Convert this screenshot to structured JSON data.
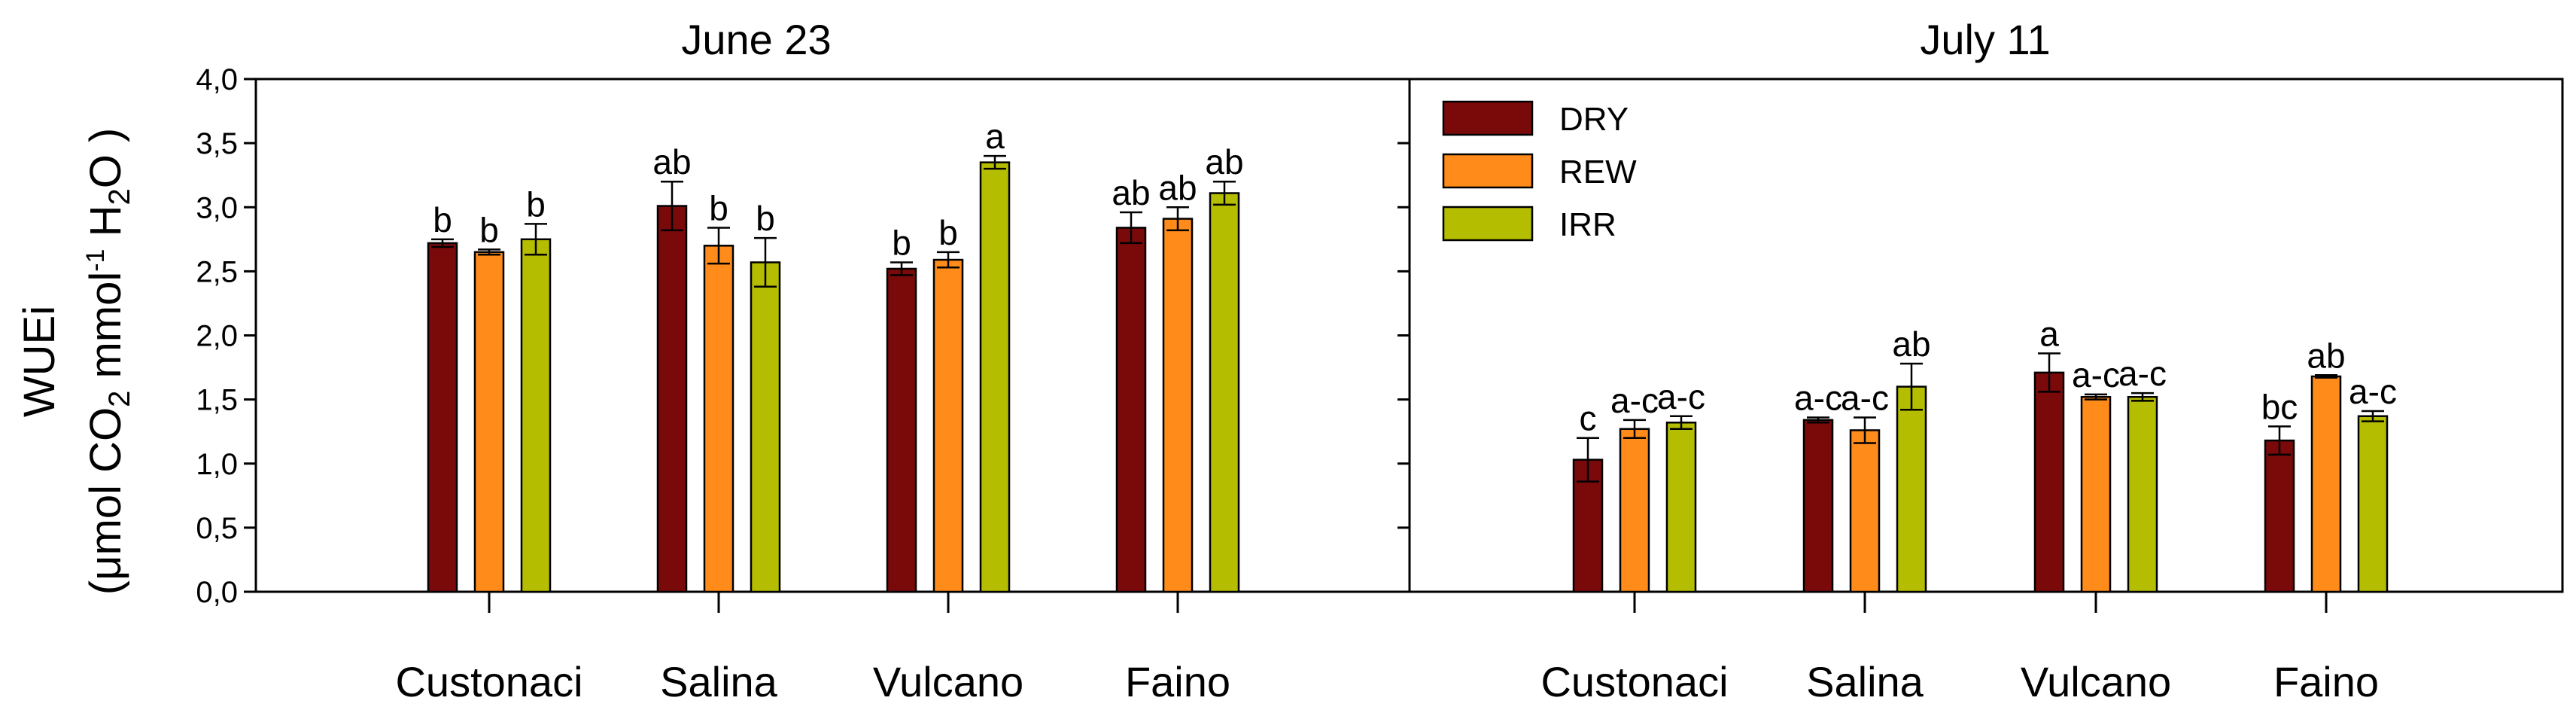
{
  "chart_data": {
    "type": "bar",
    "y_axis": {
      "label_line1": "WUEi",
      "label_line2_parts": [
        "(",
        "μ",
        "mol CO",
        "2",
        " mmol",
        "-1",
        " H",
        "2",
        "O )"
      ],
      "min": 0,
      "max": 4.0,
      "step": 0.5,
      "tick_labels": [
        "0,0",
        "0,5",
        "1,0",
        "1,5",
        "2,0",
        "2,5",
        "3,0",
        "3,5",
        "4,0"
      ]
    },
    "legend": {
      "placement": "top-left of second panel",
      "items": [
        {
          "label": "DRY",
          "color": "#7a0a0a"
        },
        {
          "label": "REW",
          "color": "#ff8c1a"
        },
        {
          "label": "IRR",
          "color": "#b5bd00"
        }
      ]
    },
    "categories": [
      "Custonaci",
      "Salina",
      "Vulcano",
      "Faino"
    ],
    "panels": [
      {
        "title": "June 23",
        "series": [
          {
            "name": "DRY",
            "values": [
              2.72,
              3.01,
              2.52,
              2.84
            ],
            "errors": [
              0.03,
              0.19,
              0.05,
              0.12
            ],
            "letters": [
              "b",
              "ab",
              "b",
              "ab"
            ]
          },
          {
            "name": "REW",
            "values": [
              2.65,
              2.7,
              2.59,
              2.91
            ],
            "errors": [
              0.02,
              0.14,
              0.06,
              0.09
            ],
            "letters": [
              "b",
              "b",
              "b",
              "ab"
            ]
          },
          {
            "name": "IRR",
            "values": [
              2.75,
              2.57,
              3.35,
              3.11
            ],
            "errors": [
              0.12,
              0.19,
              0.05,
              0.09
            ],
            "letters": [
              "b",
              "b",
              "a",
              "ab"
            ]
          }
        ]
      },
      {
        "title": "July 11",
        "series": [
          {
            "name": "DRY",
            "values": [
              1.03,
              1.34,
              1.71,
              1.18
            ],
            "errors": [
              0.17,
              0.02,
              0.15,
              0.11
            ],
            "letters": [
              "c",
              "a-c",
              "a",
              "bc"
            ]
          },
          {
            "name": "REW",
            "values": [
              1.27,
              1.26,
              1.52,
              1.68
            ],
            "errors": [
              0.07,
              0.1,
              0.02,
              0.01
            ],
            "letters": [
              "a-c",
              "a-c",
              "a-c",
              "ab"
            ]
          },
          {
            "name": "IRR",
            "values": [
              1.32,
              1.6,
              1.52,
              1.37
            ],
            "errors": [
              0.05,
              0.18,
              0.03,
              0.04
            ],
            "letters": [
              "a-c",
              "ab",
              "a-c",
              "a-c"
            ]
          }
        ]
      }
    ]
  }
}
